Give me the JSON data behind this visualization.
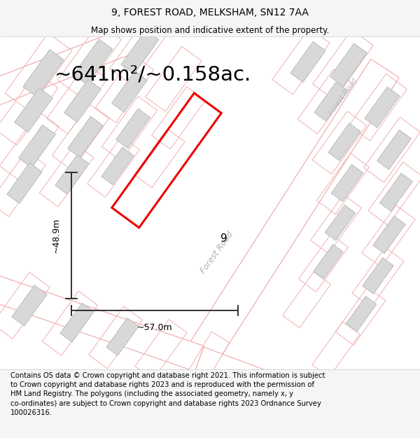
{
  "title": "9, FOREST ROAD, MELKSHAM, SN12 7AA",
  "subtitle": "Map shows position and indicative extent of the property.",
  "footer": "Contains OS data © Crown copyright and database right 2021. This information is subject to Crown copyright and database rights 2023 and is reproduced with the permission of HM Land Registry. The polygons (including the associated geometry, namely x, y co-ordinates) are subject to Crown copyright and database rights 2023 Ordnance Survey 100026316.",
  "area_text": "~641m²/~0.158ac.",
  "width_label": "~57.0m",
  "height_label": "~48.9m",
  "number_label": "9",
  "bg_color": "#f5f5f5",
  "map_bg": "#ffffff",
  "road_color": "#f0b0b0",
  "building_color": "#d8d8d8",
  "building_outline": "#bbbbbb",
  "road_label_color": "#c0c0c0",
  "plot_color": "#ee0000",
  "dimension_color": "#222222",
  "title_fontsize": 10,
  "subtitle_fontsize": 8.5,
  "footer_fontsize": 7.2,
  "area_fontsize": 21
}
